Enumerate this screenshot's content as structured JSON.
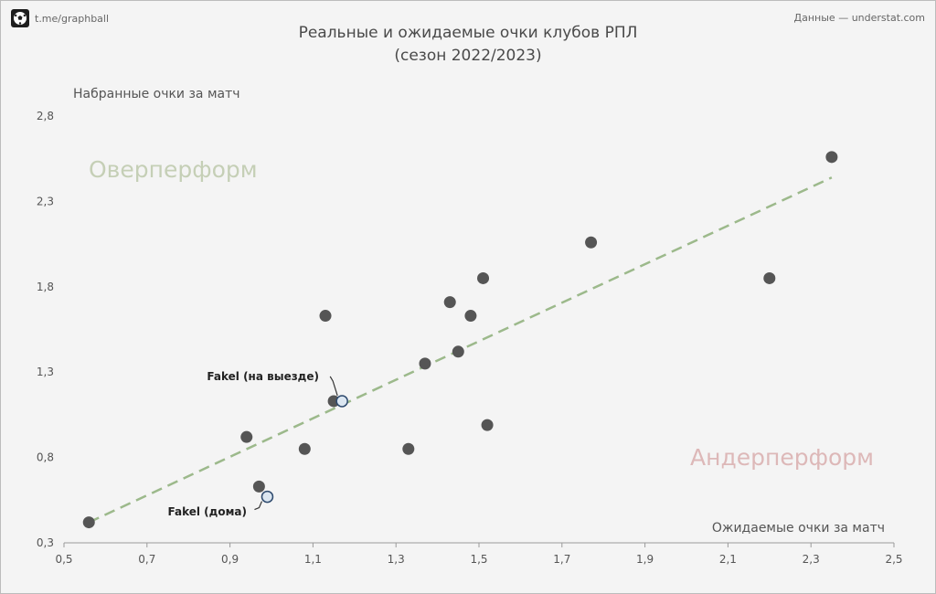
{
  "header": {
    "brand_label": "t.me/graphball",
    "source_label": "Данные — understat.com",
    "title_line1": "Реальные и ожидаемые очки клубов РПЛ",
    "title_line2": "(сезон 2022/2023)"
  },
  "chart_data": {
    "type": "scatter",
    "title": "Реальные и ожидаемые очки клубов РПЛ (сезон 2022/2023)",
    "xlabel": "Ожидаемые очки за матч",
    "ylabel": "Набранные очки за матч",
    "xlim": [
      0.5,
      2.5
    ],
    "ylim": [
      0.3,
      2.9
    ],
    "xticks": [
      0.5,
      0.7,
      0.9,
      1.1,
      1.3,
      1.5,
      1.7,
      1.9,
      2.1,
      2.3,
      2.5
    ],
    "yticks": [
      0.3,
      0.8,
      1.3,
      1.8,
      2.3,
      2.8
    ],
    "grid": false,
    "colors": {
      "points": "#555555",
      "highlight_fill": "#dbe6f1",
      "highlight_stroke": "#2e4a6e",
      "trend": "#9cb98b",
      "over": "#c5cfb6",
      "under": "#ddb8b8"
    },
    "points": [
      {
        "x": 0.56,
        "y": 0.42
      },
      {
        "x": 0.94,
        "y": 0.92
      },
      {
        "x": 0.97,
        "y": 0.63
      },
      {
        "x": 1.08,
        "y": 0.85
      },
      {
        "x": 1.13,
        "y": 1.63
      },
      {
        "x": 1.15,
        "y": 1.13
      },
      {
        "x": 1.33,
        "y": 0.85
      },
      {
        "x": 1.37,
        "y": 1.35
      },
      {
        "x": 1.43,
        "y": 1.71
      },
      {
        "x": 1.45,
        "y": 1.42
      },
      {
        "x": 1.48,
        "y": 1.63
      },
      {
        "x": 1.51,
        "y": 1.85
      },
      {
        "x": 1.52,
        "y": 0.99
      },
      {
        "x": 1.77,
        "y": 2.06
      },
      {
        "x": 2.2,
        "y": 1.85
      },
      {
        "x": 2.35,
        "y": 2.56
      }
    ],
    "highlights": [
      {
        "label": "Fakel (на выезде)",
        "x": 1.17,
        "y": 1.13
      },
      {
        "label": "Fakel (дома)",
        "x": 0.99,
        "y": 0.57
      }
    ],
    "trendline": {
      "x": [
        0.56,
        2.35
      ],
      "y": [
        0.42,
        2.44
      ]
    },
    "zones": {
      "over": "Оверперформ",
      "under": "Андерперформ"
    }
  }
}
